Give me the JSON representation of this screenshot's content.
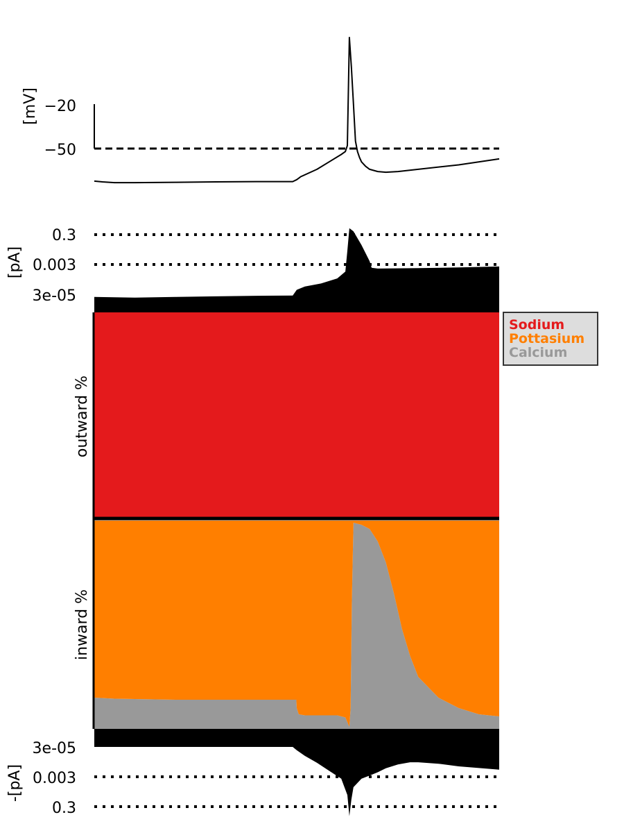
{
  "chart_data": [
    {
      "type": "line",
      "panel": "membrane-voltage",
      "ylabel": "[mV]",
      "yticks": [
        "−20",
        "−50"
      ],
      "threshold": -50,
      "ylim": [
        -90,
        35
      ],
      "series": [
        {
          "t": [
            0,
            2,
            5,
            10,
            20,
            30,
            40,
            45,
            49,
            50,
            50.5,
            51,
            55,
            58,
            61,
            62,
            62.5,
            63,
            63.5,
            64,
            64.5,
            65,
            65.5,
            66,
            67,
            68,
            70,
            72,
            75,
            80,
            90,
            100
          ],
          "v": [
            -72,
            -72.5,
            -73,
            -73,
            -72.8,
            -72.5,
            -72.3,
            -72.3,
            -72.3,
            -71,
            -70,
            -69,
            -64,
            -59,
            -54,
            -52,
            -48,
            25,
            5,
            -20,
            -45,
            -52,
            -56,
            -59,
            -62,
            -64,
            -65.5,
            -66,
            -65.5,
            -64,
            -61,
            -57
          ]
        }
      ]
    },
    {
      "type": "area",
      "panel": "total-outward-current",
      "ylabel": "[pA]",
      "yticks": [
        "0.3",
        "0.003",
        "3e-05"
      ],
      "log_scale": true,
      "t": [
        0,
        10,
        20,
        30,
        40,
        49,
        50,
        52,
        56,
        60,
        62,
        62.5,
        63,
        64,
        66,
        68,
        68.5,
        70,
        80,
        90,
        100
      ],
      "values": [
        2e-05,
        1.8e-05,
        2e-05,
        2.2e-05,
        2.4e-05,
        2.5e-05,
        6e-05,
        0.0001,
        0.00016,
        0.00035,
        0.001,
        0.025,
        0.8,
        0.5,
        0.06,
        0.005,
        0.0018,
        0.0016,
        0.0017,
        0.0019,
        0.0022
      ]
    },
    {
      "type": "area",
      "panel": "outward-fraction",
      "ylabel": "outward %",
      "stacked": true,
      "t": [
        0,
        100
      ],
      "series": [
        {
          "name": "Calcium",
          "values": [
            0,
            0
          ]
        },
        {
          "name": "Pottasium",
          "values": [
            0,
            0
          ]
        },
        {
          "name": "Sodium",
          "values": [
            100,
            100
          ]
        }
      ]
    },
    {
      "type": "area",
      "panel": "inward-fraction",
      "ylabel": "inward %",
      "stacked": true,
      "t": [
        0,
        5,
        20,
        40,
        49.9,
        50,
        50.5,
        52,
        54,
        57,
        60,
        62,
        63,
        63.3,
        63.6,
        64,
        66,
        68,
        70,
        72,
        74,
        76,
        78,
        80,
        85,
        90,
        95,
        100
      ],
      "series": [
        {
          "name": "Calcium",
          "values": [
            15,
            14.5,
            14,
            14,
            14,
            10,
            7,
            6.5,
            6.5,
            6.5,
            6.5,
            5.5,
            1,
            10,
            60,
            99,
            98,
            96,
            90,
            80,
            65,
            48,
            35,
            25,
            15,
            10,
            7,
            6
          ]
        },
        {
          "name": "Pottasium",
          "values": [
            85,
            85.5,
            86,
            86,
            86,
            90,
            93,
            93.5,
            93.5,
            93.5,
            93.5,
            94.5,
            99,
            90,
            40,
            1,
            2,
            4,
            10,
            20,
            35,
            52,
            65,
            75,
            85,
            90,
            93,
            94
          ]
        },
        {
          "name": "Sodium",
          "values": [
            0,
            0,
            0,
            0,
            0,
            0,
            0,
            0,
            0,
            0,
            0,
            0,
            0,
            0,
            0,
            0,
            0,
            0,
            0,
            0,
            0,
            0,
            0,
            0,
            0,
            0,
            0,
            0
          ]
        }
      ]
    },
    {
      "type": "area",
      "panel": "total-inward-current",
      "ylabel": "-[pA]",
      "yticks": [
        "3e-05",
        "0.003",
        "0.3"
      ],
      "log_scale": true,
      "t": [
        0,
        10,
        20,
        30,
        40,
        49,
        50,
        52,
        55,
        58,
        61,
        62.5,
        63,
        63.5,
        64,
        66,
        68,
        70,
        72,
        75,
        78,
        80,
        85,
        90,
        100
      ],
      "values": [
        3e-05,
        3e-05,
        3e-05,
        3e-05,
        3e-05,
        3e-05,
        5e-05,
        0.00012,
        0.00035,
        0.0012,
        0.004,
        0.05,
        1.3,
        0.1,
        0.015,
        0.004,
        0.0025,
        0.0015,
        0.0008,
        0.00045,
        0.00032,
        0.00032,
        0.0004,
        0.0006,
        0.001
      ]
    }
  ],
  "legend": {
    "items": [
      {
        "label": "Sodium",
        "color": "#e41a1c"
      },
      {
        "label": "Pottasium",
        "color": "#ff7f00"
      },
      {
        "label": "Calcium",
        "color": "#999999"
      }
    ],
    "background": "#dddddd"
  },
  "colors": {
    "trace": "#000000",
    "sodium": "#e41a1c",
    "pottasium": "#ff7f00",
    "calcium": "#999999"
  }
}
